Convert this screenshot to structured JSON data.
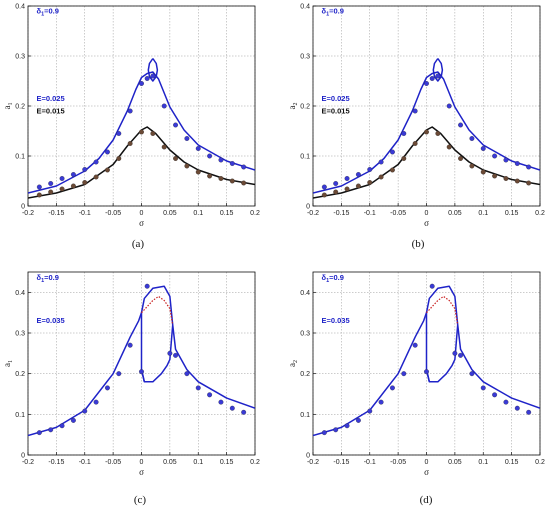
{
  "colors": {
    "blue": "#1f23c8",
    "black": "#111111",
    "red": "#c81e1e",
    "marker_blue": "#3a3ad6",
    "marker_brown": "#6b4a36",
    "grid": "#9a9a9a"
  },
  "chart_data": [
    {
      "type": "line",
      "panel_label": "(a)",
      "xlabel": "σ",
      "ylabel": "a",
      "ylabel_sub": "1",
      "xlim": [
        -0.2,
        0.2
      ],
      "ylim": [
        0,
        0.4
      ],
      "x_ticks": [
        "-0.2",
        "-0.15",
        "-0.1",
        "-0.05",
        "0",
        "0.05",
        "0.1",
        "0.15",
        "0.2"
      ],
      "y_ticks": [
        "0",
        "0.1",
        "0.2",
        "0.3",
        "0.4"
      ],
      "grid": true,
      "annotations": [
        {
          "text": "δ",
          "sub": "1",
          "rest": "=0.9",
          "x": -0.185,
          "y": 0.385,
          "color": "#1f23c8"
        },
        {
          "text": "E=0.025",
          "x": -0.185,
          "y": 0.21,
          "color": "#1f23c8"
        },
        {
          "text": "E=0.015",
          "x": -0.185,
          "y": 0.185,
          "color": "#111111"
        }
      ],
      "series": [
        {
          "kind": "line",
          "color": "#1f23c8",
          "x": [
            -0.2,
            -0.15,
            -0.1,
            -0.075,
            -0.05,
            -0.025,
            -0.01,
            0,
            0.01,
            0.02,
            0.03,
            0.05,
            0.075,
            0.1,
            0.15,
            0.2
          ],
          "y": [
            0.026,
            0.04,
            0.07,
            0.095,
            0.132,
            0.19,
            0.233,
            0.257,
            0.265,
            0.268,
            0.254,
            0.198,
            0.152,
            0.122,
            0.09,
            0.072
          ]
        },
        {
          "kind": "loop",
          "color": "#1f23c8",
          "x": [
            0.02,
            0.026,
            0.028,
            0.026,
            0.02,
            0.014,
            0.012,
            0.014,
            0.02
          ],
          "y": [
            0.295,
            0.285,
            0.272,
            0.259,
            0.25,
            0.259,
            0.272,
            0.285,
            0.295
          ]
        },
        {
          "kind": "line",
          "color": "#111111",
          "x": [
            -0.2,
            -0.15,
            -0.1,
            -0.05,
            -0.025,
            0,
            0.01,
            0.025,
            0.05,
            0.075,
            0.1,
            0.15,
            0.2
          ],
          "y": [
            0.016,
            0.026,
            0.043,
            0.083,
            0.12,
            0.152,
            0.158,
            0.145,
            0.112,
            0.088,
            0.072,
            0.053,
            0.043
          ]
        },
        {
          "kind": "markers",
          "color": "#3a3ad6",
          "x": [
            -0.18,
            -0.16,
            -0.14,
            -0.12,
            -0.1,
            -0.08,
            -0.06,
            -0.04,
            -0.02,
            0,
            0.01,
            0.02,
            0.04,
            0.06,
            0.08,
            0.1,
            0.12,
            0.14,
            0.16,
            0.18
          ],
          "y": [
            0.038,
            0.045,
            0.055,
            0.063,
            0.073,
            0.088,
            0.108,
            0.145,
            0.19,
            0.245,
            0.255,
            0.26,
            0.2,
            0.162,
            0.135,
            0.115,
            0.1,
            0.092,
            0.085,
            0.078
          ]
        },
        {
          "kind": "markers",
          "color": "#6b4a36",
          "x": [
            -0.18,
            -0.16,
            -0.14,
            -0.12,
            -0.1,
            -0.08,
            -0.06,
            -0.04,
            -0.02,
            0,
            0.02,
            0.04,
            0.06,
            0.08,
            0.1,
            0.12,
            0.14,
            0.16,
            0.18
          ],
          "y": [
            0.022,
            0.028,
            0.034,
            0.04,
            0.047,
            0.058,
            0.072,
            0.095,
            0.125,
            0.148,
            0.145,
            0.118,
            0.095,
            0.08,
            0.068,
            0.06,
            0.055,
            0.05,
            0.046
          ]
        }
      ]
    },
    {
      "type": "line",
      "panel_label": "(b)",
      "xlabel": "σ",
      "ylabel": "a",
      "ylabel_sub": "2",
      "xlim": [
        -0.2,
        0.2
      ],
      "ylim": [
        0,
        0.4
      ],
      "x_ticks": [
        "-0.2",
        "-0.15",
        "-0.1",
        "-0.05",
        "0",
        "0.05",
        "0.1",
        "0.15",
        "0.2"
      ],
      "y_ticks": [
        "0",
        "0.1",
        "0.2",
        "0.3",
        "0.4"
      ],
      "grid": true,
      "annotations": [
        {
          "text": "δ",
          "sub": "1",
          "rest": "=0.9",
          "x": -0.185,
          "y": 0.385,
          "color": "#1f23c8"
        },
        {
          "text": "E=0.025",
          "x": -0.185,
          "y": 0.21,
          "color": "#1f23c8"
        },
        {
          "text": "E=0.015",
          "x": -0.185,
          "y": 0.185,
          "color": "#111111"
        }
      ],
      "series": [
        {
          "kind": "line",
          "color": "#1f23c8",
          "x": [
            -0.2,
            -0.15,
            -0.1,
            -0.075,
            -0.05,
            -0.025,
            -0.01,
            0,
            0.01,
            0.02,
            0.03,
            0.05,
            0.075,
            0.1,
            0.15,
            0.2
          ],
          "y": [
            0.026,
            0.04,
            0.07,
            0.095,
            0.132,
            0.19,
            0.233,
            0.257,
            0.265,
            0.268,
            0.254,
            0.198,
            0.152,
            0.122,
            0.09,
            0.072
          ]
        },
        {
          "kind": "loop",
          "color": "#1f23c8",
          "x": [
            0.02,
            0.026,
            0.028,
            0.026,
            0.02,
            0.014,
            0.012,
            0.014,
            0.02
          ],
          "y": [
            0.295,
            0.285,
            0.272,
            0.259,
            0.25,
            0.259,
            0.272,
            0.285,
            0.295
          ]
        },
        {
          "kind": "line",
          "color": "#111111",
          "x": [
            -0.2,
            -0.15,
            -0.1,
            -0.05,
            -0.025,
            0,
            0.01,
            0.025,
            0.05,
            0.075,
            0.1,
            0.15,
            0.2
          ],
          "y": [
            0.016,
            0.026,
            0.043,
            0.083,
            0.12,
            0.152,
            0.158,
            0.145,
            0.112,
            0.088,
            0.072,
            0.053,
            0.043
          ]
        },
        {
          "kind": "markers",
          "color": "#3a3ad6",
          "x": [
            -0.18,
            -0.16,
            -0.14,
            -0.12,
            -0.1,
            -0.08,
            -0.06,
            -0.04,
            -0.02,
            0,
            0.01,
            0.02,
            0.04,
            0.06,
            0.08,
            0.1,
            0.12,
            0.14,
            0.16,
            0.18
          ],
          "y": [
            0.038,
            0.045,
            0.055,
            0.063,
            0.073,
            0.088,
            0.108,
            0.145,
            0.19,
            0.245,
            0.255,
            0.26,
            0.2,
            0.162,
            0.135,
            0.115,
            0.1,
            0.092,
            0.085,
            0.078
          ]
        },
        {
          "kind": "markers",
          "color": "#6b4a36",
          "x": [
            -0.18,
            -0.16,
            -0.14,
            -0.12,
            -0.1,
            -0.08,
            -0.06,
            -0.04,
            -0.02,
            0,
            0.02,
            0.04,
            0.06,
            0.08,
            0.1,
            0.12,
            0.14,
            0.16,
            0.18
          ],
          "y": [
            0.022,
            0.028,
            0.034,
            0.04,
            0.047,
            0.058,
            0.072,
            0.095,
            0.125,
            0.148,
            0.145,
            0.118,
            0.095,
            0.08,
            0.068,
            0.06,
            0.055,
            0.05,
            0.046
          ]
        }
      ]
    },
    {
      "type": "line",
      "panel_label": "(c)",
      "xlabel": "σ",
      "ylabel": "a",
      "ylabel_sub": "1",
      "xlim": [
        -0.2,
        0.2
      ],
      "ylim": [
        0,
        0.45
      ],
      "x_ticks": [
        "-0.2",
        "-0.15",
        "-0.1",
        "-0.05",
        "0",
        "0.05",
        "0.1",
        "0.15",
        "0.2"
      ],
      "y_ticks": [
        "0",
        "0.1",
        "0.2",
        "0.3",
        "0.4"
      ],
      "grid": true,
      "annotations": [
        {
          "text": "δ",
          "sub": "1",
          "rest": "=0.9",
          "x": -0.185,
          "y": 0.43,
          "color": "#1f23c8"
        },
        {
          "text": "E=0.035",
          "x": -0.185,
          "y": 0.325,
          "color": "#1f23c8"
        }
      ],
      "series": [
        {
          "kind": "line",
          "color": "#1f23c8",
          "x": [
            -0.2,
            -0.15,
            -0.1,
            -0.05,
            -0.02,
            -0.005,
            0,
            0.005,
            0.02,
            0.04,
            0.05,
            0.055,
            0.06,
            0.08,
            0.1,
            0.15,
            0.2
          ],
          "y": [
            0.048,
            0.068,
            0.11,
            0.2,
            0.29,
            0.33,
            0.35,
            0.385,
            0.41,
            0.415,
            0.39,
            0.32,
            0.26,
            0.21,
            0.18,
            0.14,
            0.115
          ]
        },
        {
          "kind": "line",
          "color": "#1f23c8",
          "x": [
            0,
            0.005,
            0.02,
            0.035,
            0.045,
            0.05,
            0.055
          ],
          "y": [
            0.21,
            0.18,
            0.18,
            0.2,
            0.22,
            0.235,
            0.32
          ]
        },
        {
          "kind": "line",
          "color": "#1f23c8",
          "x": [
            0,
            0,
            0.005
          ],
          "y": [
            0.35,
            0.21,
            0.18
          ]
        },
        {
          "kind": "dashed",
          "color": "#c81e1e",
          "x": [
            0,
            0.01,
            0.02,
            0.03,
            0.04,
            0.05,
            0.055
          ],
          "y": [
            0.35,
            0.365,
            0.38,
            0.39,
            0.38,
            0.36,
            0.32
          ]
        },
        {
          "kind": "markers",
          "color": "#3a3ad6",
          "x": [
            -0.18,
            -0.16,
            -0.14,
            -0.12,
            -0.1,
            -0.08,
            -0.06,
            -0.04,
            -0.02,
            0,
            0.01,
            0.05,
            0.06,
            0.08,
            0.1,
            0.12,
            0.14,
            0.16,
            0.18
          ],
          "y": [
            0.055,
            0.062,
            0.072,
            0.085,
            0.108,
            0.13,
            0.165,
            0.2,
            0.27,
            0.205,
            0.415,
            0.25,
            0.245,
            0.2,
            0.165,
            0.148,
            0.13,
            0.115,
            0.105
          ]
        }
      ]
    },
    {
      "type": "line",
      "panel_label": "(d)",
      "xlabel": "σ",
      "ylabel": "a",
      "ylabel_sub": "2",
      "xlim": [
        -0.2,
        0.2
      ],
      "ylim": [
        0,
        0.45
      ],
      "x_ticks": [
        "-0.2",
        "-0.15",
        "-0.1",
        "-0.05",
        "0",
        "0.05",
        "0.1",
        "0.15",
        "0.2"
      ],
      "y_ticks": [
        "0",
        "0.1",
        "0.2",
        "0.3",
        "0.4"
      ],
      "grid": true,
      "annotations": [
        {
          "text": "δ",
          "sub": "1",
          "rest": "=0.9",
          "x": -0.185,
          "y": 0.43,
          "color": "#1f23c8"
        },
        {
          "text": "E=0.035",
          "x": -0.185,
          "y": 0.325,
          "color": "#1f23c8"
        }
      ],
      "series": [
        {
          "kind": "line",
          "color": "#1f23c8",
          "x": [
            -0.2,
            -0.15,
            -0.1,
            -0.05,
            -0.02,
            -0.005,
            0,
            0.005,
            0.02,
            0.04,
            0.05,
            0.055,
            0.06,
            0.08,
            0.1,
            0.15,
            0.2
          ],
          "y": [
            0.048,
            0.068,
            0.11,
            0.2,
            0.29,
            0.33,
            0.35,
            0.385,
            0.41,
            0.415,
            0.39,
            0.32,
            0.26,
            0.21,
            0.18,
            0.14,
            0.115
          ]
        },
        {
          "kind": "line",
          "color": "#1f23c8",
          "x": [
            0,
            0.005,
            0.02,
            0.035,
            0.045,
            0.05,
            0.055
          ],
          "y": [
            0.21,
            0.18,
            0.18,
            0.2,
            0.22,
            0.235,
            0.32
          ]
        },
        {
          "kind": "line",
          "color": "#1f23c8",
          "x": [
            0,
            0,
            0.005
          ],
          "y": [
            0.35,
            0.21,
            0.18
          ]
        },
        {
          "kind": "dashed",
          "color": "#c81e1e",
          "x": [
            0,
            0.01,
            0.02,
            0.03,
            0.04,
            0.05,
            0.055
          ],
          "y": [
            0.35,
            0.365,
            0.38,
            0.39,
            0.38,
            0.36,
            0.32
          ]
        },
        {
          "kind": "markers",
          "color": "#3a3ad6",
          "x": [
            -0.18,
            -0.16,
            -0.14,
            -0.12,
            -0.1,
            -0.08,
            -0.06,
            -0.04,
            -0.02,
            0,
            0.01,
            0.05,
            0.06,
            0.08,
            0.1,
            0.12,
            0.14,
            0.16,
            0.18
          ],
          "y": [
            0.055,
            0.062,
            0.072,
            0.085,
            0.108,
            0.13,
            0.165,
            0.2,
            0.27,
            0.205,
            0.415,
            0.25,
            0.245,
            0.2,
            0.165,
            0.148,
            0.13,
            0.115,
            0.105
          ]
        }
      ]
    }
  ]
}
